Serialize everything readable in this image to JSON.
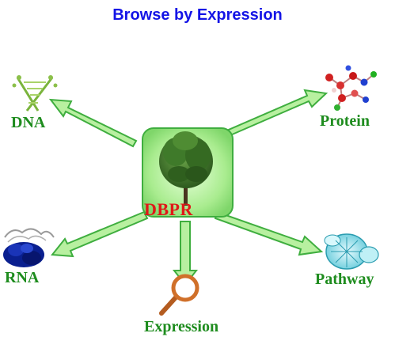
{
  "title": "Browse by Expression",
  "center": {
    "label": "DBPR",
    "icon": "tree-icon"
  },
  "nodes": [
    {
      "id": "dna",
      "label": "DNA",
      "icon": "dna-icon"
    },
    {
      "id": "protein",
      "label": "Protein",
      "icon": "protein-molecule-icon"
    },
    {
      "id": "rna",
      "label": "RNA",
      "icon": "rna-icon"
    },
    {
      "id": "pathway",
      "label": "Pathway",
      "icon": "pathway-icon"
    },
    {
      "id": "expression",
      "label": "Expression",
      "icon": "magnifier-icon"
    }
  ],
  "colors": {
    "title": "#1414e6",
    "labels": "#1e8c1e",
    "center_label": "#e01818",
    "arrow": "#b8f0a0",
    "arrow_edge": "#3fae3f",
    "center_box": "#9fe88a"
  }
}
